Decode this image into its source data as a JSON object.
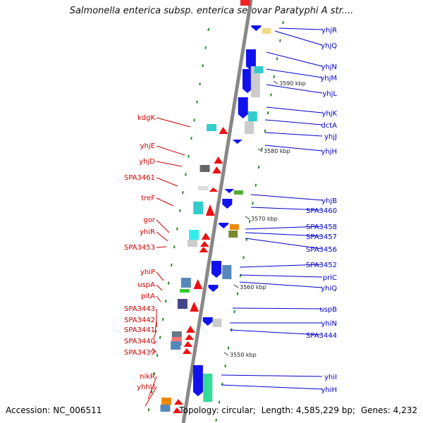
{
  "title": "Salmonella enterica subsp. enterica serovar Paratyphi A str....",
  "footer": {
    "accession": "Accession: NC_006511",
    "topology": "Topology: circular;",
    "length": "Length: 4,585,229 bp;",
    "genes": "Genes: 4,232"
  },
  "colors": {
    "backbone": "#888888",
    "plus_label": "#0000cc",
    "minus_label": "#cc0000",
    "tick": "#2a8a2a",
    "ruler": "#c0c0c0"
  },
  "ruler_labels": [
    "3590 kbp",
    "3580 kbp",
    "3570 kbp",
    "3560 kbp",
    "3550 kbp"
  ],
  "genes_plus": [
    {
      "name": "yhjR"
    },
    {
      "name": "yhjQ"
    },
    {
      "name": "yhjN"
    },
    {
      "name": "yhjM"
    },
    {
      "name": "yhjL"
    },
    {
      "name": "yhjK"
    },
    {
      "name": "dctA"
    },
    {
      "name": "yhjJ"
    },
    {
      "name": "yhjH"
    },
    {
      "name": "yhjB"
    },
    {
      "name": "SPA3460"
    },
    {
      "name": "SPA3458"
    },
    {
      "name": "SPA3457"
    },
    {
      "name": "SPA3456"
    },
    {
      "name": "SPA3452"
    },
    {
      "name": "prlC"
    },
    {
      "name": "yhiQ"
    },
    {
      "name": "uspB"
    },
    {
      "name": "yhiN"
    },
    {
      "name": "SPA3444"
    },
    {
      "name": "yhiI"
    },
    {
      "name": "yhiH"
    }
  ],
  "genes_minus": [
    {
      "name": "kdgK"
    },
    {
      "name": "yhjE"
    },
    {
      "name": "yhjD"
    },
    {
      "name": "SPA3461"
    },
    {
      "name": "treF"
    },
    {
      "name": "gor"
    },
    {
      "name": "yhiR"
    },
    {
      "name": "SPA3453"
    },
    {
      "name": "yhiP"
    },
    {
      "name": "uspA"
    },
    {
      "name": "pitA"
    },
    {
      "name": "SPA3443"
    },
    {
      "name": "SPA3442"
    },
    {
      "name": "SPA3441"
    },
    {
      "name": "SPA3440"
    },
    {
      "name": "SPA3439"
    },
    {
      "name": "nikR"
    },
    {
      "name": "yhhU"
    }
  ]
}
